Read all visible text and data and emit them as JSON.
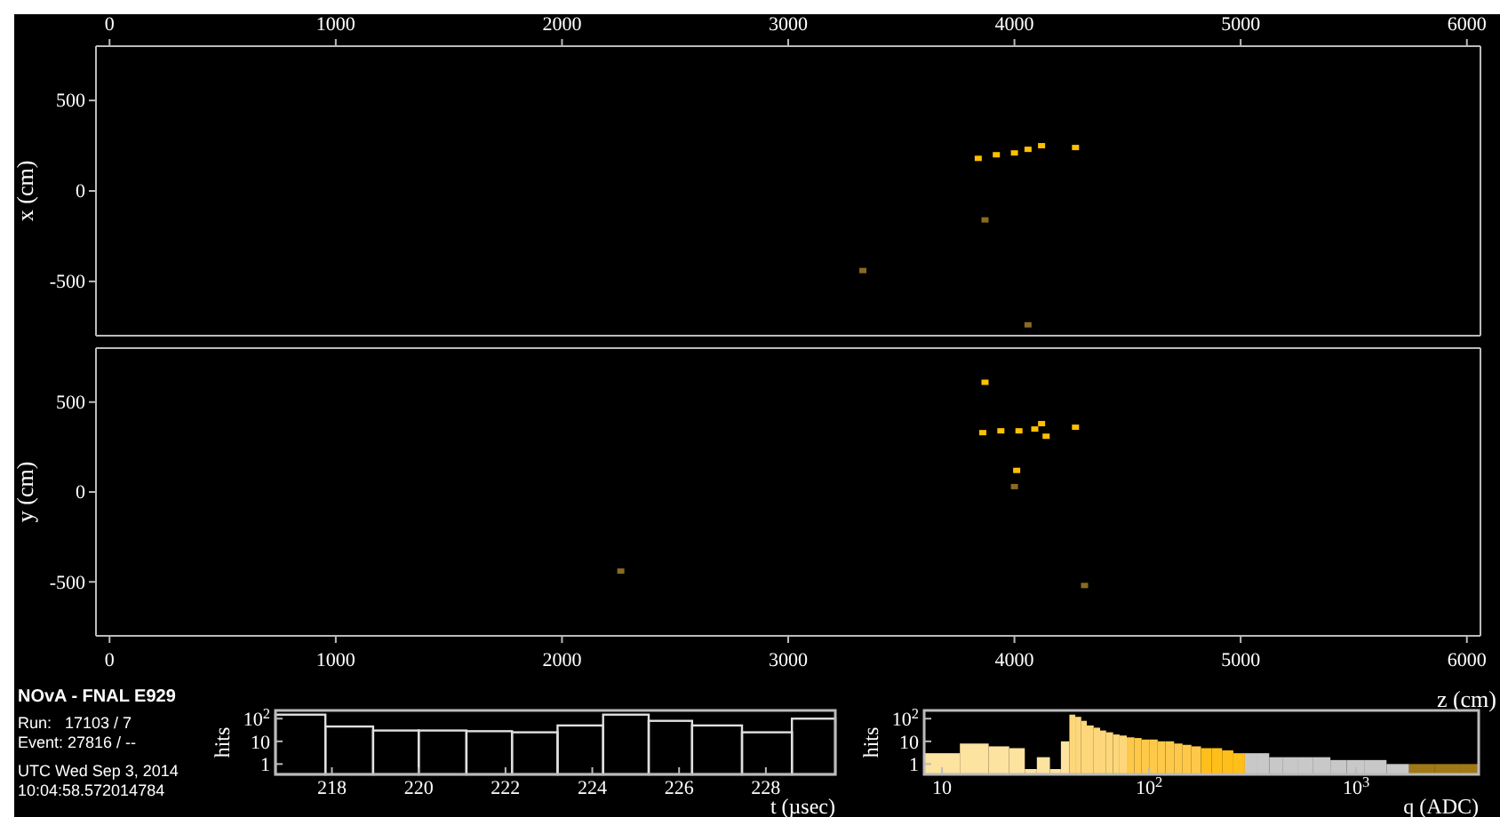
{
  "chart_data": [
    {
      "type": "scatter",
      "ylabel": "x (cm)",
      "xlim": [
        -60,
        6060
      ],
      "xticks": [
        0,
        1000,
        2000,
        3000,
        4000,
        5000,
        6000
      ],
      "ylim": [
        -800,
        800
      ],
      "yticks": [
        -500,
        0,
        500
      ],
      "marker": "square",
      "series": [
        {
          "color": "#ffc000",
          "x": [
            3840,
            3920,
            4000,
            4060,
            4120,
            4270
          ],
          "values": [
            180,
            200,
            210,
            230,
            250,
            240
          ]
        },
        {
          "color": "#8a6a20",
          "x": [
            3870,
            3330,
            4060
          ],
          "values": [
            -160,
            -440,
            -740
          ]
        }
      ]
    },
    {
      "type": "scatter",
      "xlabel": "z (cm)",
      "ylabel": "y (cm)",
      "xlim": [
        -60,
        6060
      ],
      "xticks": [
        0,
        1000,
        2000,
        3000,
        4000,
        5000,
        6000
      ],
      "ylim": [
        -800,
        800
      ],
      "yticks": [
        -500,
        0,
        500
      ],
      "marker": "square",
      "series": [
        {
          "color": "#ffc000",
          "x": [
            3860,
            3940,
            4020,
            4090,
            4120,
            4140,
            4270,
            3870,
            4010
          ],
          "values": [
            330,
            340,
            340,
            350,
            380,
            310,
            360,
            610,
            120
          ]
        },
        {
          "color": "#8a6a20",
          "x": [
            4000,
            2260,
            4310
          ],
          "values": [
            30,
            -440,
            -520
          ]
        }
      ]
    },
    {
      "type": "other",
      "title": "NOvA - FNAL E929",
      "annotations": [
        "Run:   17103 / 7",
        "Event: 27816 / --",
        "UTC Wed Sep 3, 2014",
        "10:04:58.572014784"
      ]
    },
    {
      "type": "histogram",
      "xlabel": "t (µsec)",
      "ylabel": "hits",
      "log": "y",
      "color": "#e0e0e0",
      "xlim": [
        216.7,
        229.6
      ],
      "xticks": [
        218,
        220,
        222,
        224,
        226,
        228
      ],
      "ylim": [
        0.35,
        230
      ],
      "yticks": [
        1,
        10,
        {
          "value": 100,
          "label": "10$^{2}$"
        }
      ],
      "bins": [
        216.7,
        217.85,
        218.95,
        220.0,
        221.1,
        222.15,
        223.2,
        224.25,
        225.3,
        226.3,
        227.45,
        228.6,
        229.6
      ],
      "values": [
        150,
        45,
        30,
        30,
        28,
        25,
        50,
        150,
        80,
        50,
        25,
        100
      ]
    },
    {
      "type": "histogram",
      "xlabel": "q (ADC)",
      "ylabel": "hits",
      "log": "xy",
      "xlim": [
        8.2,
        3900
      ],
      "xticks": [
        10,
        {
          "value": 100,
          "label": "10$^{2}$"
        },
        {
          "value": 1000,
          "label": "10$^{3}$"
        }
      ],
      "ylim": [
        0.35,
        230
      ],
      "yticks": [
        1,
        10,
        {
          "value": 100,
          "label": "10$^{2}$"
        }
      ],
      "bins": [
        8.2,
        12.2,
        16.8,
        21.1,
        25.1,
        28.7,
        33.2,
        37.5,
        41.2,
        44,
        47,
        50,
        54,
        58,
        62,
        67,
        72,
        78,
        85,
        92,
        100,
        110,
        120,
        132,
        145,
        160,
        178,
        200,
        225,
        255,
        290,
        330,
        380,
        440,
        520,
        620,
        750,
        900,
        1100,
        1400,
        1800,
        2400,
        3200,
        3900
      ],
      "values": [
        3,
        8,
        6,
        5,
        0.6,
        2,
        0.6,
        10,
        150,
        120,
        80,
        50,
        40,
        30,
        25,
        20,
        18,
        15,
        14,
        12,
        12,
        10,
        10,
        8,
        7,
        6,
        5,
        5,
        4,
        3,
        3,
        3,
        2,
        2,
        2,
        2,
        1.5,
        1.5,
        1.5,
        1,
        1,
        1,
        1
      ],
      "colors": [
        "#fde3a0",
        "#fde3a0",
        "#fde3a0",
        "#fde3a0",
        "#fde3a0",
        "#fde3a0",
        "#fde3a0",
        "#fde3a0",
        "#fdd77a",
        "#fdd77a",
        "#fdd77a",
        "#fdd77a",
        "#fdd77a",
        "#fdd77a",
        "#fdd77a",
        "#fdd77a",
        "#fdd77a",
        "#fec94a",
        "#fec94a",
        "#fec94a",
        "#fec94a",
        "#fec94a",
        "#fec94a",
        "#fec94a",
        "#fec94a",
        "#fec94a",
        "#ffbf1a",
        "#ffbf1a",
        "#ffbf1a",
        "#ffbf1a",
        "#c8c8c8",
        "#c8c8c8",
        "#c8c8c8",
        "#c8c8c8",
        "#c8c8c8",
        "#c8c8c8",
        "#c8c8c8",
        "#c8c8c8",
        "#c8c8c8",
        "#c8c8c8",
        "#a07818",
        "#a07818",
        "#a07818"
      ]
    }
  ]
}
